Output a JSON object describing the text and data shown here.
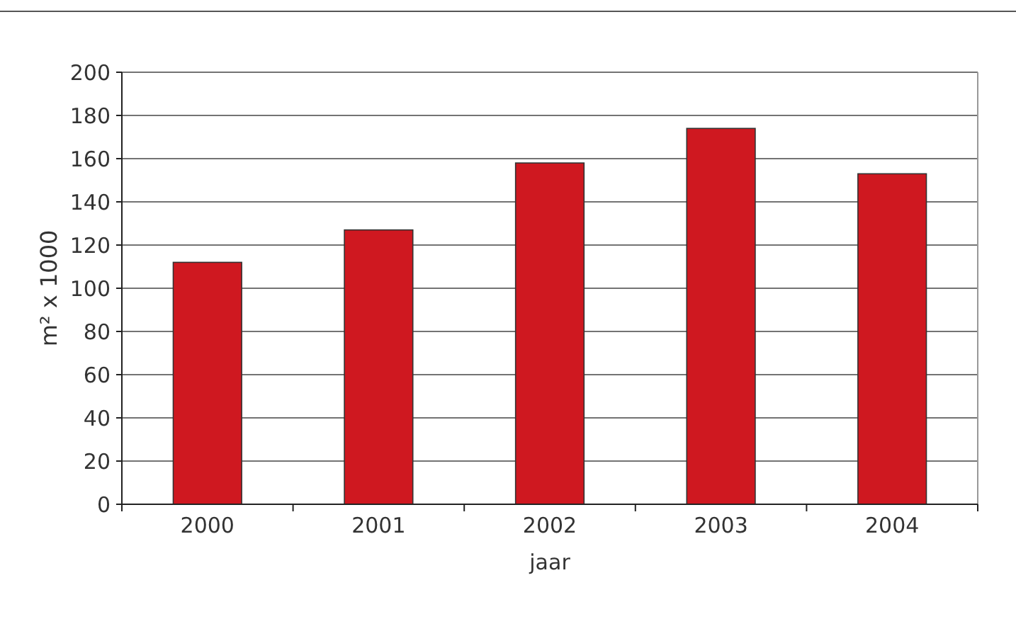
{
  "chart_data": {
    "type": "bar",
    "xlabel": "jaar",
    "ylabel": "m² x 1000",
    "categories": [
      "2000",
      "2001",
      "2002",
      "2003",
      "2004"
    ],
    "values": [
      112,
      127,
      158,
      174,
      153
    ],
    "color": "#cf1820",
    "ylim": [
      0,
      200
    ],
    "yticks": [
      0,
      20,
      40,
      60,
      80,
      100,
      120,
      140,
      160,
      180,
      200
    ],
    "grid": "y"
  }
}
